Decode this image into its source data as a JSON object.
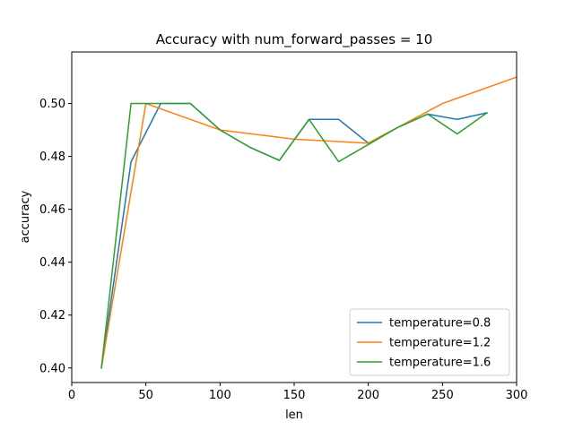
{
  "chart_data": {
    "type": "line",
    "title": "Accuracy with num_forward_passes = 10",
    "xlabel": "len",
    "ylabel": "accuracy",
    "xlim": [
      0,
      300
    ],
    "ylim": [
      0.3945,
      0.5195
    ],
    "xticks": [
      0,
      50,
      100,
      150,
      200,
      250,
      300
    ],
    "yticks": [
      0.4,
      0.42,
      0.44,
      0.46,
      0.48,
      0.5
    ],
    "ytick_labels": [
      "0.40",
      "0.42",
      "0.44",
      "0.46",
      "0.48",
      "0.50"
    ],
    "grid": false,
    "legend_position": "lower-right",
    "series": [
      {
        "name": "temperature=0.8",
        "color": "#1f77b4",
        "x": [
          20,
          40,
          60,
          80,
          100,
          120,
          140,
          160,
          180,
          200,
          220,
          240,
          260,
          280
        ],
        "y": [
          0.4,
          0.478,
          0.5,
          0.5,
          0.49,
          0.4835,
          0.4785,
          0.494,
          0.494,
          0.485,
          0.491,
          0.496,
          0.494,
          0.4965
        ]
      },
      {
        "name": "temperature=1.2",
        "color": "#ff7f0e",
        "x": [
          20,
          50,
          100,
          150,
          200,
          250,
          300
        ],
        "y": [
          0.4,
          0.5,
          0.49,
          0.4865,
          0.485,
          0.5,
          0.51
        ]
      },
      {
        "name": "temperature=1.6",
        "color": "#2ca02c",
        "x": [
          20,
          40,
          60,
          80,
          100,
          120,
          140,
          160,
          180,
          200,
          220,
          240,
          260,
          280
        ],
        "y": [
          0.4,
          0.5,
          0.5,
          0.5,
          0.49,
          0.4835,
          0.4785,
          0.494,
          0.478,
          0.4845,
          0.491,
          0.496,
          0.4885,
          0.4965
        ]
      }
    ]
  }
}
